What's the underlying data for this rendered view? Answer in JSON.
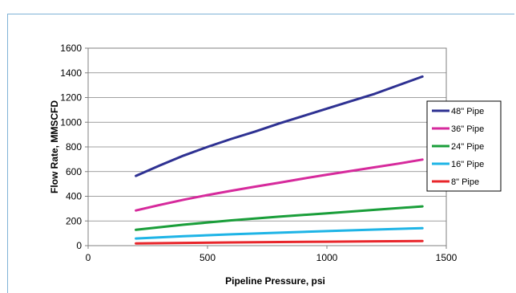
{
  "chart_data": {
    "type": "line",
    "xlabel": "Pipeline Pressure, psi",
    "ylabel": "Flow Rate, MMSCFD",
    "xlim": [
      0,
      1500
    ],
    "ylim": [
      0,
      1600
    ],
    "xticks": [
      0,
      500,
      1000,
      1500
    ],
    "yticks": [
      0,
      200,
      400,
      600,
      800,
      1000,
      1200,
      1400,
      1600
    ],
    "grid": "horizontal",
    "legend_position": "right",
    "series": [
      {
        "name": "48\" Pipe",
        "color": "#2e3192",
        "x": [
          200,
          300,
          400,
          500,
          600,
          700,
          800,
          900,
          1000,
          1100,
          1200,
          1300,
          1400
        ],
        "y": [
          565,
          650,
          730,
          800,
          865,
          925,
          990,
          1050,
          1110,
          1170,
          1230,
          1300,
          1370
        ]
      },
      {
        "name": "36\" Pipe",
        "color": "#d62a9c",
        "x": [
          200,
          300,
          400,
          500,
          600,
          700,
          800,
          900,
          1000,
          1100,
          1200,
          1300,
          1400
        ],
        "y": [
          285,
          330,
          372,
          410,
          445,
          478,
          510,
          543,
          575,
          605,
          635,
          665,
          697
        ]
      },
      {
        "name": "24\" Pipe",
        "color": "#1a9e3a",
        "x": [
          200,
          400,
          600,
          800,
          1000,
          1200,
          1400
        ],
        "y": [
          128,
          170,
          205,
          235,
          262,
          290,
          318
        ]
      },
      {
        "name": "16\" Pipe",
        "color": "#1eb4e6",
        "x": [
          200,
          400,
          600,
          800,
          1000,
          1200,
          1400
        ],
        "y": [
          58,
          76,
          92,
          105,
          118,
          130,
          142
        ]
      },
      {
        "name": "8\" Pipe",
        "color": "#e8262b",
        "x": [
          200,
          400,
          600,
          800,
          1000,
          1200,
          1400
        ],
        "y": [
          18,
          22,
          26,
          29,
          32,
          35,
          38
        ]
      }
    ]
  }
}
